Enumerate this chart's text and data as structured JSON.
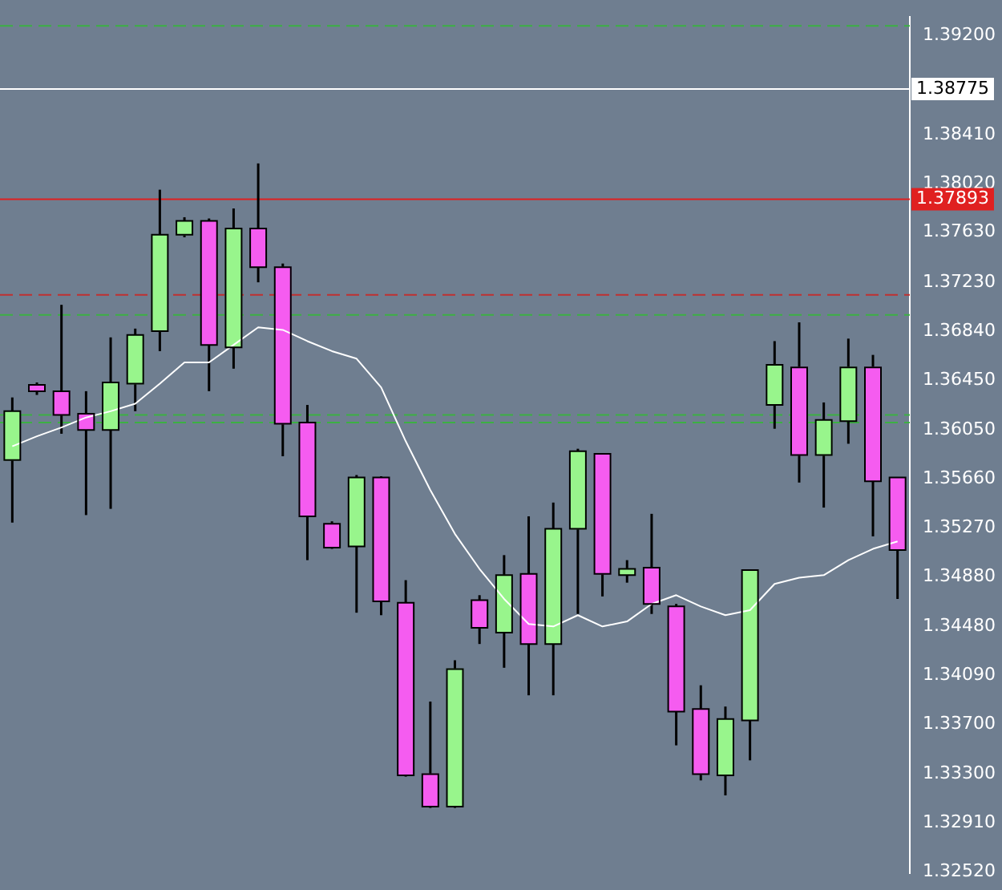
{
  "chart_data": {
    "type": "candlestick",
    "categories": [
      null,
      null,
      null,
      null,
      null,
      null,
      null,
      null,
      null,
      null,
      null,
      null,
      null,
      null,
      null,
      null,
      null,
      null,
      null,
      null,
      null,
      null,
      null,
      null,
      null,
      null,
      null,
      null,
      null,
      null,
      null,
      null,
      null,
      null,
      null,
      null,
      null
    ],
    "ohlc": [
      [
        1.3581,
        1.3631,
        1.3531,
        1.362
      ],
      [
        1.3641,
        1.3643,
        1.3633,
        1.3636
      ],
      [
        1.3636,
        1.3705,
        1.3602,
        1.3617
      ],
      [
        1.3618,
        1.3636,
        1.3537,
        1.3605
      ],
      [
        1.3605,
        1.3679,
        1.3542,
        1.3643
      ],
      [
        1.3642,
        1.3686,
        1.362,
        1.3681
      ],
      [
        1.3684,
        1.3797,
        1.3668,
        1.3761
      ],
      [
        1.3761,
        1.3775,
        1.3759,
        1.3772
      ],
      [
        1.3772,
        1.3774,
        1.3636,
        1.3673
      ],
      [
        1.3671,
        1.3782,
        1.3654,
        1.3766
      ],
      [
        1.3766,
        1.3818,
        1.3723,
        1.3735
      ],
      [
        1.3735,
        1.3738,
        1.3584,
        1.361
      ],
      [
        1.3611,
        1.3625,
        1.3501,
        1.3536
      ],
      [
        1.353,
        1.3532,
        1.351,
        1.3511
      ],
      [
        1.3512,
        1.3569,
        1.3459,
        1.3567
      ],
      [
        1.3567,
        1.3568,
        1.3457,
        1.3468
      ],
      [
        1.3467,
        1.3485,
        1.3328,
        1.3329
      ],
      [
        1.333,
        1.3388,
        1.3303,
        1.3304
      ],
      [
        1.3304,
        1.3421,
        1.3303,
        1.3414
      ],
      [
        1.3469,
        1.3473,
        1.3434,
        1.3447
      ],
      [
        1.3443,
        1.3505,
        1.3415,
        1.3489
      ],
      [
        1.349,
        1.3536,
        1.3393,
        1.3434
      ],
      [
        1.3434,
        1.3547,
        1.3393,
        1.3526
      ],
      [
        1.3526,
        1.359,
        1.3458,
        1.3588
      ],
      [
        1.3586,
        1.3586,
        1.3472,
        1.349
      ],
      [
        1.3489,
        1.3501,
        1.3483,
        1.3494
      ],
      [
        1.3495,
        1.3538,
        1.3458,
        1.3466
      ],
      [
        1.3464,
        1.3466,
        1.3353,
        1.338
      ],
      [
        1.3382,
        1.3401,
        1.3325,
        1.333
      ],
      [
        1.3329,
        1.3384,
        1.3313,
        1.3374
      ],
      [
        1.3373,
        1.3493,
        1.3341,
        1.3493
      ],
      [
        1.3625,
        1.3676,
        1.3606,
        1.3657
      ],
      [
        1.3655,
        1.3691,
        1.3563,
        1.3585
      ],
      [
        1.3585,
        1.3627,
        1.3543,
        1.3613
      ],
      [
        1.3612,
        1.3678,
        1.3594,
        1.3655
      ],
      [
        1.3655,
        1.3665,
        1.352,
        1.3564
      ],
      [
        1.3567,
        1.3567,
        1.347,
        1.3509
      ]
    ],
    "colors": [
      "#98f58c",
      "#f55cf0",
      "#f55cf0",
      "#f55cf0",
      "#98f58c",
      "#98f58c",
      "#98f58c",
      "#98f58c",
      "#f55cf0",
      "#98f58c",
      "#f55cf0",
      "#f55cf0",
      "#f55cf0",
      "#f55cf0",
      "#98f58c",
      "#f55cf0",
      "#f55cf0",
      "#f55cf0",
      "#98f58c",
      "#f55cf0",
      "#98f58c",
      "#f55cf0",
      "#98f58c",
      "#98f58c",
      "#f55cf0",
      "#98f58c",
      "#f55cf0",
      "#f55cf0",
      "#f55cf0",
      "#98f58c",
      "#98f58c",
      "#98f58c",
      "#f55cf0",
      "#98f58c",
      "#98f58c",
      "#f55cf0",
      "#f55cf0"
    ],
    "series": [
      {
        "type": "line",
        "color": "#ffffff",
        "values": [
          1.3592,
          1.36,
          1.3607,
          1.3615,
          1.362,
          1.3626,
          1.3642,
          1.3659,
          1.3659,
          1.3673,
          1.3687,
          1.3685,
          1.3676,
          1.3668,
          1.3662,
          1.3639,
          1.3596,
          1.3557,
          1.3522,
          1.3494,
          1.347,
          1.345,
          1.3448,
          1.3457,
          1.3448,
          1.3452,
          1.3466,
          1.3473,
          1.3464,
          1.3457,
          1.3461,
          1.3482,
          1.3487,
          1.3489,
          1.3501,
          1.351,
          1.3516
        ]
      }
    ],
    "ylim": [
      1.3251,
      1.3935
    ],
    "yticks": [
      {
        "value": 1.392,
        "label": "1.39200"
      },
      {
        "value": 1.3841,
        "label": "1.38410"
      },
      {
        "value": 1.3802,
        "label": "1.38020"
      },
      {
        "value": 1.3763,
        "label": "1.37630"
      },
      {
        "value": 1.3723,
        "label": "1.37230"
      },
      {
        "value": 1.3684,
        "label": "1.36840"
      },
      {
        "value": 1.3645,
        "label": "1.36450"
      },
      {
        "value": 1.3605,
        "label": "1.36050"
      },
      {
        "value": 1.3566,
        "label": "1.35660"
      },
      {
        "value": 1.3527,
        "label": "1.35270"
      },
      {
        "value": 1.3488,
        "label": "1.34880"
      },
      {
        "value": 1.3448,
        "label": "1.34480"
      },
      {
        "value": 1.3409,
        "label": "1.34090"
      },
      {
        "value": 1.337,
        "label": "1.33700"
      },
      {
        "value": 1.333,
        "label": "1.33300"
      },
      {
        "value": 1.3291,
        "label": "1.32910"
      },
      {
        "value": 1.3252,
        "label": "1.32520"
      }
    ],
    "ref_lines": [
      {
        "axis": "y",
        "value": 1.38775,
        "label": "1.38775",
        "color": "#ffffff"
      },
      {
        "axis": "y",
        "value": 1.37893,
        "label": "1.37893",
        "color": "#e02020"
      },
      {
        "axis": "y",
        "value": 1.3928,
        "color": "#3cb043",
        "line_style": "dashed"
      },
      {
        "axis": "y",
        "value": 1.3713,
        "color": "#c03030",
        "line_style": "dashed"
      },
      {
        "axis": "y",
        "value": 1.3697,
        "color": "#3cb043",
        "line_style": "dashed"
      },
      {
        "axis": "y",
        "value": 1.3617,
        "color": "#3cb043",
        "line_style": "dashed"
      },
      {
        "axis": "y",
        "value": 1.3611,
        "color": "#3cb043",
        "line_style": "dashed"
      }
    ],
    "grid": false,
    "legend": false
  }
}
